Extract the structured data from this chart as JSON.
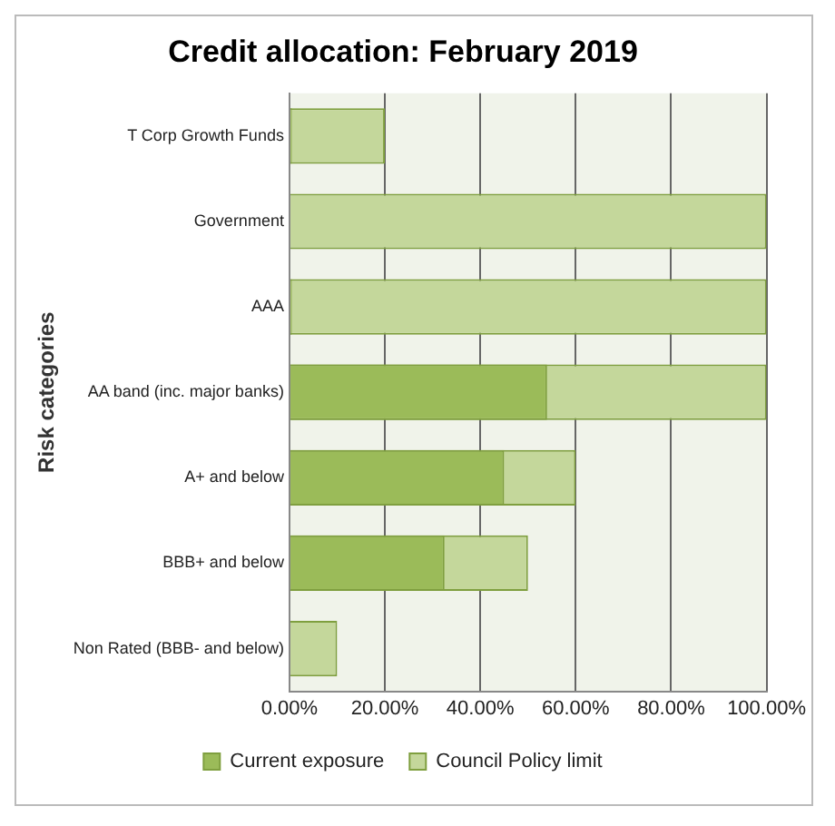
{
  "chart_data": {
    "type": "bar",
    "orientation": "horizontal",
    "title": "Credit allocation: February 2019",
    "ylabel": "Risk categories",
    "categories": [
      "T Corp Growth Funds",
      "Government",
      "AAA",
      "AA band (inc. major banks)",
      "A+ and below",
      "BBB+ and below",
      "Non Rated (BBB- and below)"
    ],
    "series": [
      {
        "name": "Current exposure",
        "color": "#9bbb59",
        "values": [
          0.5,
          0,
          0.5,
          54,
          45,
          32.5,
          0
        ]
      },
      {
        "name": "Council Policy limit",
        "color": "#c4d79b",
        "values": [
          20,
          100,
          100,
          100,
          60,
          50,
          10
        ]
      }
    ],
    "xlim": [
      0,
      100
    ],
    "xticks": [
      {
        "value": 0,
        "label": "0.00%"
      },
      {
        "value": 20,
        "label": "20.00%"
      },
      {
        "value": 40,
        "label": "40.00%"
      },
      {
        "value": 60,
        "label": "60.00%"
      },
      {
        "value": 80,
        "label": "80.00%"
      },
      {
        "value": 100,
        "label": "100.00%"
      }
    ],
    "grid": "x",
    "legend": "bottom"
  }
}
